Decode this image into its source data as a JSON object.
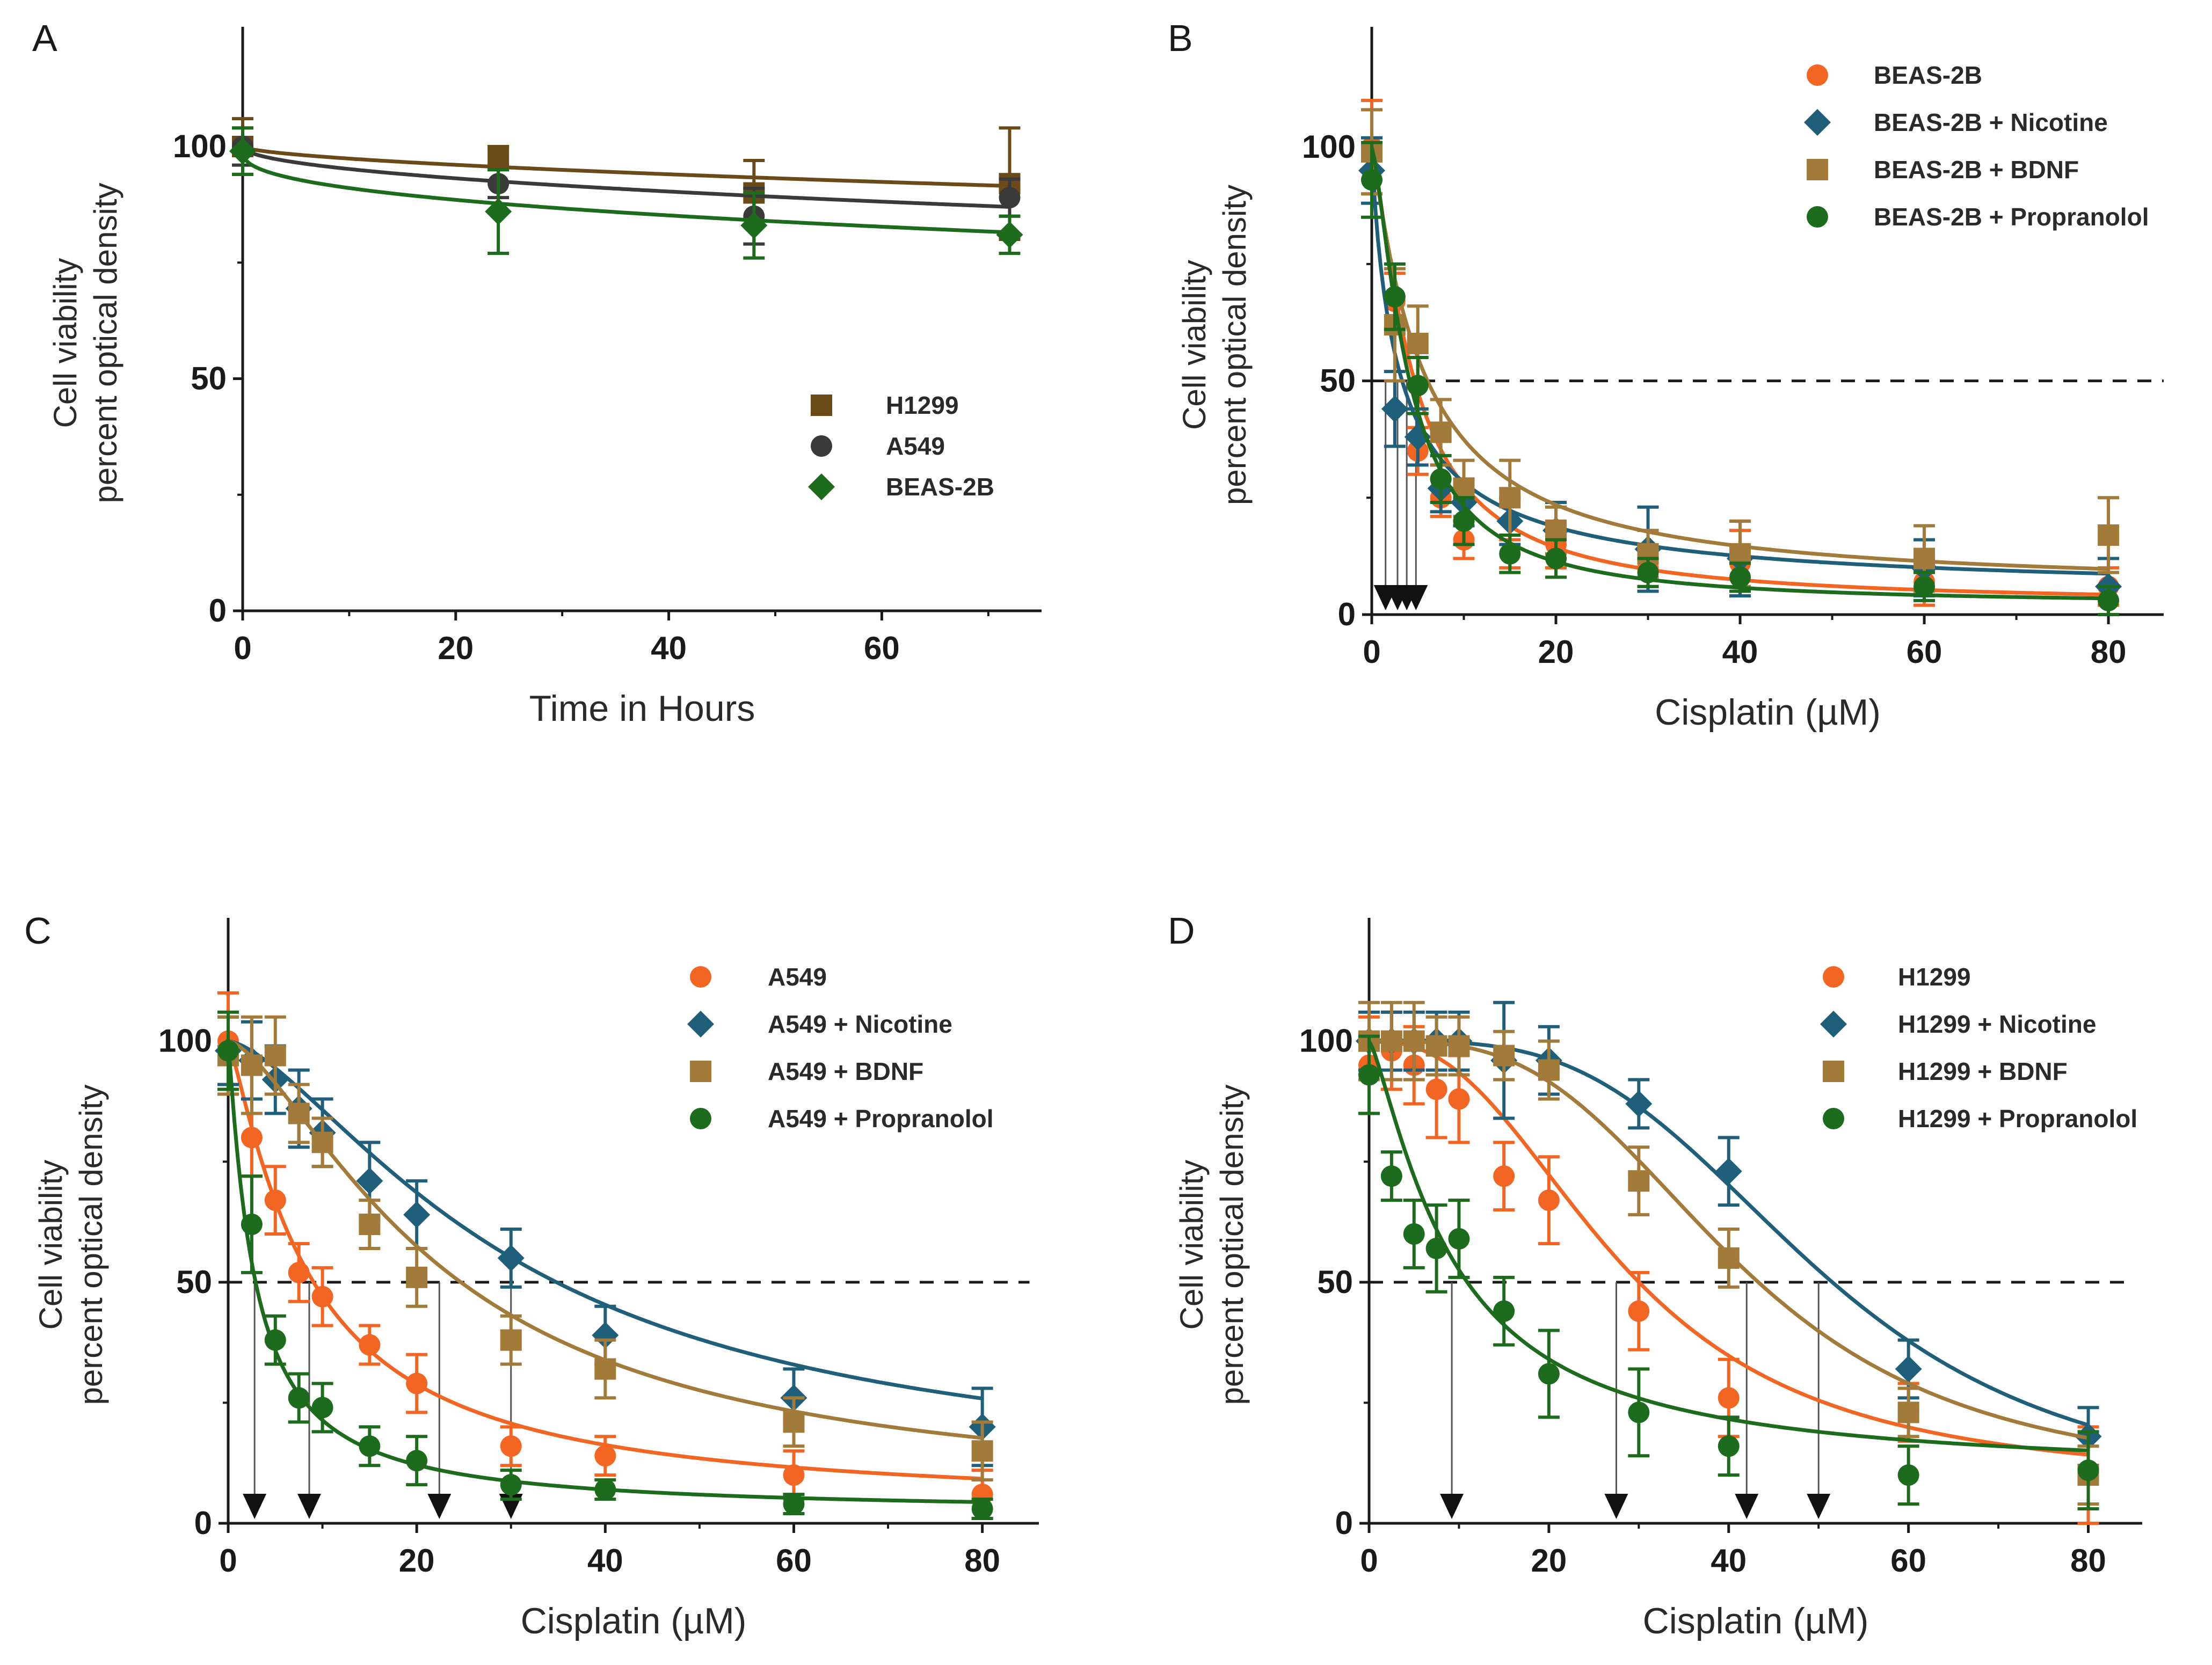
{
  "colors": {
    "orange": "#f26522",
    "teal": "#1f5f7a",
    "brown": "#a27a3a",
    "green": "#1d6b1d",
    "darkbrown": "#6b4a1a",
    "gray": "#3a3a3a",
    "axis": "#1a1a1a",
    "arrow": "#111111"
  },
  "chart_data": [
    {
      "panel_label": "A",
      "type": "line",
      "xlabel": "Time in Hours",
      "ylabel_line1": "Cell viability",
      "ylabel_line2": "percent optical density",
      "xlim": [
        0,
        75
      ],
      "ylim": [
        0,
        120
      ],
      "xticks": [
        0,
        20,
        40,
        60
      ],
      "yticks": [
        0,
        50,
        100
      ],
      "legend_position": "center-right",
      "ic50_line": null,
      "ic50_arrows": [],
      "series": [
        {
          "name": "H1299",
          "marker": "square",
          "color_key": "darkbrown",
          "x": [
            0,
            24,
            48,
            72
          ],
          "y": [
            100,
            98,
            90,
            92
          ],
          "err": [
            6,
            2,
            7,
            12
          ],
          "curve": {
            "type": "time",
            "start": 100,
            "end": 91.5,
            "p": 0.6
          }
        },
        {
          "name": "A549",
          "marker": "circle",
          "color_key": "gray",
          "x": [
            0,
            24,
            48,
            72
          ],
          "y": [
            100,
            92,
            85,
            89
          ],
          "err": [
            4,
            3,
            6,
            4
          ],
          "curve": {
            "type": "time",
            "start": 100,
            "end": 87,
            "p": 0.5
          }
        },
        {
          "name": "BEAS-2B",
          "marker": "diamond",
          "color_key": "green",
          "x": [
            0,
            24,
            48,
            72
          ],
          "y": [
            99,
            86,
            83,
            81
          ],
          "err": [
            5,
            9,
            7,
            4
          ],
          "curve": {
            "type": "time",
            "start": 99,
            "end": 81.5,
            "p": 0.4
          }
        }
      ]
    },
    {
      "panel_label": "B",
      "type": "line",
      "xlabel": "Cisplatin (µM)",
      "ylabel_line1": "Cell viability",
      "ylabel_line2": "percent optical density",
      "xlim": [
        0,
        86
      ],
      "ylim": [
        0,
        120
      ],
      "xticks": [
        0,
        20,
        40,
        60,
        80
      ],
      "yticks": [
        0,
        50,
        100
      ],
      "legend_position": "top-right",
      "ic50_line": {
        "y": 50,
        "x_end": 86
      },
      "ic50_arrows": [
        1.5,
        2.8,
        3.8,
        4.8
      ],
      "series": [
        {
          "name": "BEAS-2B",
          "marker": "circle",
          "color_key": "orange",
          "x": [
            0,
            2.5,
            5,
            7.5,
            10,
            15,
            20,
            30,
            40,
            60,
            80
          ],
          "y": [
            100,
            67,
            35,
            25,
            16,
            13,
            15,
            10,
            11,
            7,
            6
          ],
          "err": [
            10,
            6,
            5,
            4,
            4,
            3,
            5,
            4,
            7,
            5,
            4
          ],
          "curve": {
            "type": "hill",
            "top": 100,
            "bottom": 2,
            "ic50": 4.5,
            "h": 1.3
          }
        },
        {
          "name": "BEAS-2B + Nicotine",
          "marker": "diamond",
          "color_key": "teal",
          "x": [
            0,
            2.5,
            5,
            7.5,
            10,
            15,
            20,
            30,
            40,
            60,
            80
          ],
          "y": [
            95,
            44,
            38,
            27,
            24,
            20,
            18,
            14,
            12,
            10,
            6
          ],
          "err": [
            7,
            8,
            6,
            5,
            5,
            5,
            6,
            9,
            8,
            6,
            6
          ],
          "curve": {
            "type": "hill",
            "top": 100,
            "bottom": 4,
            "ic50": 3.0,
            "h": 0.9
          }
        },
        {
          "name": "BEAS-2B + BDNF",
          "marker": "square",
          "color_key": "brown",
          "x": [
            0,
            2.5,
            5,
            7.5,
            10,
            15,
            20,
            30,
            40,
            60,
            80
          ],
          "y": [
            99,
            62,
            58,
            39,
            27,
            25,
            18,
            13,
            13,
            12,
            17
          ],
          "err": [
            9,
            12,
            8,
            7,
            6,
            8,
            5,
            5,
            7,
            7,
            8
          ],
          "curve": {
            "type": "hill",
            "top": 100,
            "bottom": 5,
            "ic50": 5.5,
            "h": 1.1
          }
        },
        {
          "name": "BEAS-2B + Propranolol",
          "marker": "circle",
          "color_key": "green",
          "x": [
            0,
            2.5,
            5,
            7.5,
            10,
            15,
            20,
            30,
            40,
            60,
            80
          ],
          "y": [
            93,
            68,
            49,
            29,
            20,
            13,
            12,
            9,
            8,
            6,
            3
          ],
          "err": [
            8,
            7,
            6,
            5,
            5,
            4,
            4,
            3,
            3,
            3,
            3
          ],
          "curve": {
            "type": "hill",
            "top": 100,
            "bottom": 2,
            "ic50": 4.0,
            "h": 1.4
          }
        }
      ]
    },
    {
      "panel_label": "C",
      "type": "line",
      "xlabel": "Cisplatin (µM)",
      "ylabel_line1": "Cell viability",
      "ylabel_line2": "percent optical density",
      "xlim": [
        0,
        86
      ],
      "ylim": [
        0,
        120
      ],
      "xticks": [
        0,
        20,
        40,
        60,
        80
      ],
      "yticks": [
        0,
        50,
        100
      ],
      "legend_position": "top-right",
      "ic50_line": {
        "y": 50,
        "x_end": 85
      },
      "ic50_arrows": [
        2.8,
        8.6,
        22.4,
        30
      ],
      "series": [
        {
          "name": "A549",
          "marker": "circle",
          "color_key": "orange",
          "x": [
            0,
            2.5,
            5,
            7.5,
            10,
            15,
            20,
            30,
            40,
            60,
            80
          ],
          "y": [
            100,
            80,
            67,
            52,
            47,
            37,
            29,
            16,
            14,
            10,
            6
          ],
          "err": [
            10,
            8,
            7,
            6,
            6,
            4,
            6,
            4,
            4,
            5,
            5
          ],
          "curve": {
            "type": "hill",
            "top": 100,
            "bottom": 3,
            "ic50": 8.6,
            "h": 1.2
          }
        },
        {
          "name": "A549 + Nicotine",
          "marker": "diamond",
          "color_key": "teal",
          "x": [
            0,
            2.5,
            5,
            7.5,
            10,
            15,
            20,
            30,
            40,
            60,
            80
          ],
          "y": [
            98,
            96,
            92,
            86,
            81,
            71,
            64,
            55,
            39,
            26,
            20
          ],
          "err": [
            7,
            8,
            7,
            8,
            7,
            8,
            7,
            6,
            6,
            6,
            8
          ],
          "curve": {
            "type": "hill",
            "top": 100,
            "bottom": 8,
            "ic50": 31,
            "h": 1.5
          }
        },
        {
          "name": "A549 + BDNF",
          "marker": "square",
          "color_key": "brown",
          "x": [
            0,
            2.5,
            5,
            7.5,
            10,
            15,
            20,
            30,
            40,
            60,
            80
          ],
          "y": [
            97,
            95,
            97,
            85,
            79,
            62,
            51,
            38,
            32,
            21,
            15
          ],
          "err": [
            8,
            10,
            8,
            6,
            5,
            5,
            6,
            5,
            6,
            5,
            6
          ],
          "curve": {
            "type": "hill",
            "top": 100,
            "bottom": 5,
            "ic50": 23,
            "h": 1.5
          }
        },
        {
          "name": "A549 + Propranolol",
          "marker": "circle",
          "color_key": "green",
          "x": [
            0,
            2.5,
            5,
            7.5,
            10,
            15,
            20,
            30,
            40,
            60,
            80
          ],
          "y": [
            98,
            62,
            38,
            26,
            24,
            16,
            13,
            8,
            7,
            4,
            3
          ],
          "err": [
            8,
            10,
            5,
            5,
            5,
            4,
            5,
            3,
            2,
            2,
            2
          ],
          "curve": {
            "type": "hill",
            "top": 100,
            "bottom": 2,
            "ic50": 2.8,
            "h": 1.1
          }
        }
      ]
    },
    {
      "panel_label": "D",
      "type": "line",
      "xlabel": "Cisplatin (µM)",
      "ylabel_line1": "Cell viability",
      "ylabel_line2": "percent optical density",
      "xlim": [
        0,
        86
      ],
      "ylim": [
        0,
        120
      ],
      "xticks": [
        0,
        20,
        40,
        60,
        80
      ],
      "yticks": [
        0,
        50,
        100
      ],
      "legend_position": "top-right",
      "ic50_line": {
        "y": 50,
        "x_end": 85
      },
      "ic50_arrows": [
        9.2,
        27.5,
        42,
        50
      ],
      "series": [
        {
          "name": "H1299",
          "marker": "circle",
          "color_key": "orange",
          "x": [
            0,
            2.5,
            5,
            7.5,
            10,
            15,
            20,
            30,
            40,
            60,
            80
          ],
          "y": [
            95,
            98,
            95,
            90,
            88,
            72,
            67,
            44,
            26,
            23,
            10
          ],
          "err": [
            10,
            8,
            8,
            10,
            9,
            7,
            9,
            8,
            8,
            6,
            10
          ],
          "curve": {
            "type": "hill",
            "top": 100,
            "bottom": 8,
            "ic50": 28,
            "h": 2.5
          }
        },
        {
          "name": "H1299 + Nicotine",
          "marker": "diamond",
          "color_key": "teal",
          "x": [
            0,
            2.5,
            5,
            7.5,
            10,
            15,
            20,
            30,
            40,
            60,
            80
          ],
          "y": [
            100,
            100,
            100,
            100,
            100,
            96,
            96,
            87,
            73,
            32,
            18
          ],
          "err": [
            6,
            6,
            6,
            6,
            6,
            12,
            7,
            5,
            7,
            6,
            6
          ],
          "curve": {
            "type": "hill",
            "top": 100,
            "bottom": 5,
            "ic50": 50,
            "h": 3.5
          }
        },
        {
          "name": "H1299 + BDNF",
          "marker": "square",
          "color_key": "brown",
          "x": [
            0,
            2.5,
            5,
            7.5,
            10,
            15,
            20,
            30,
            40,
            60,
            80
          ],
          "y": [
            100,
            100,
            100,
            99,
            99,
            97,
            94,
            71,
            55,
            23,
            10
          ],
          "err": [
            8,
            8,
            8,
            6,
            6,
            5,
            6,
            7,
            6,
            5,
            6
          ],
          "curve": {
            "type": "hill",
            "top": 100,
            "bottom": 8,
            "ic50": 41,
            "h": 3.2
          }
        },
        {
          "name": "H1299 + Propranolol",
          "marker": "circle",
          "color_key": "green",
          "x": [
            0,
            2.5,
            5,
            7.5,
            10,
            15,
            20,
            30,
            40,
            60,
            80
          ],
          "y": [
            93,
            72,
            60,
            57,
            59,
            44,
            31,
            23,
            16,
            10,
            11
          ],
          "err": [
            8,
            5,
            7,
            9,
            8,
            7,
            9,
            9,
            6,
            6,
            8
          ],
          "curve": {
            "type": "hill",
            "top": 100,
            "bottom": 10,
            "ic50": 9.2,
            "h": 1.3
          }
        }
      ]
    }
  ]
}
